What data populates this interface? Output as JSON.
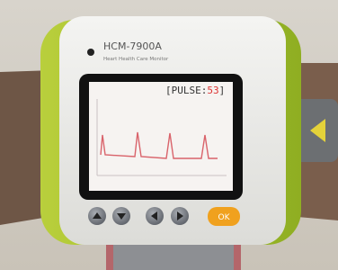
{
  "device": {
    "model": "HCM-7900A",
    "subtitle": "Heart Health Care Monitor"
  },
  "screen": {
    "pulse_open": "[PULSE:",
    "pulse_value": "53",
    "pulse_close": "]"
  },
  "buttons": {
    "ok": "OK"
  }
}
